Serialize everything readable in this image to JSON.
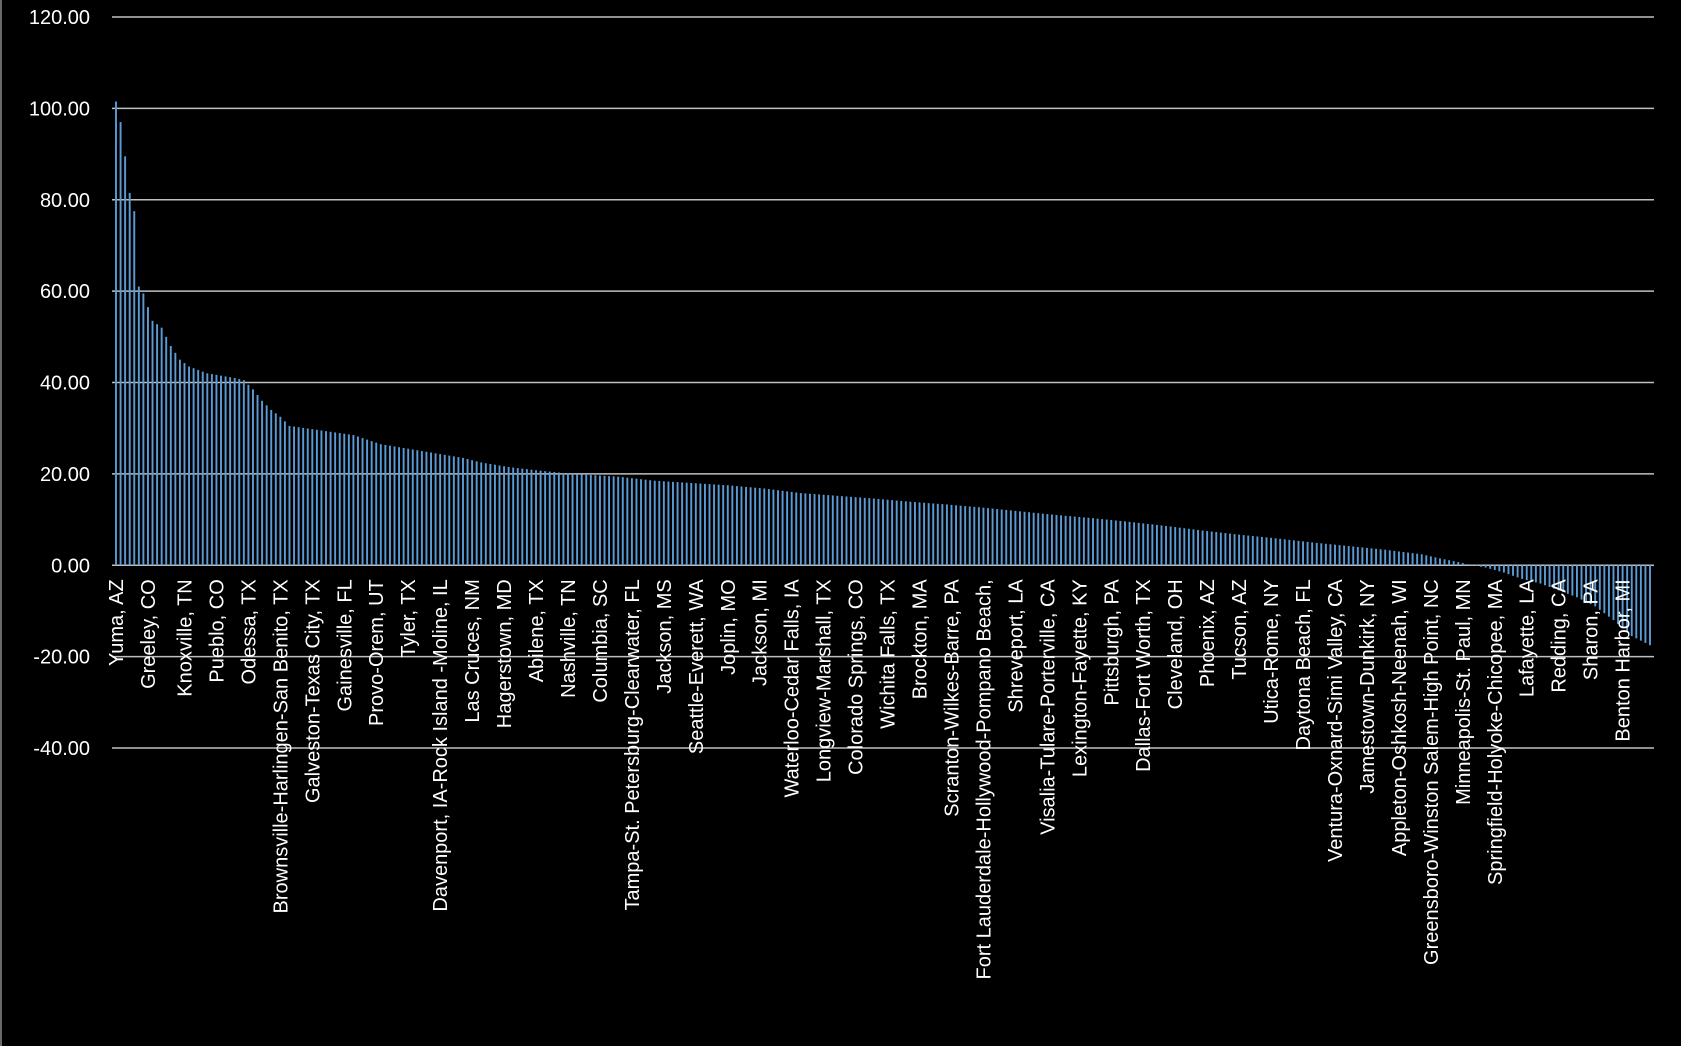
{
  "chart_data": {
    "type": "bar",
    "title": "",
    "xlabel": "",
    "ylabel": "",
    "ylim": [
      -40,
      120
    ],
    "yticks": [
      120,
      100,
      80,
      60,
      40,
      20,
      0,
      -20,
      -40
    ],
    "ytick_labels": [
      "120.00",
      "100.00",
      "80.00",
      "60.00",
      "40.00",
      "20.00",
      "0.00",
      "-20.00",
      "-40.00"
    ],
    "grid": true,
    "legend": "none",
    "bar_color": "#5b9bd5",
    "background": "#000000",
    "bar_count": 337,
    "labeled_categories": [
      {
        "index": 0,
        "label": "Yuma, AZ"
      },
      {
        "index": 7,
        "label": "Greeley, CO"
      },
      {
        "index": 15,
        "label": "Knoxville, TN"
      },
      {
        "index": 22,
        "label": "Pueblo, CO"
      },
      {
        "index": 29,
        "label": "Odessa, TX"
      },
      {
        "index": 36,
        "label": "Brownsville-Harlingen-San Benito, TX"
      },
      {
        "index": 43,
        "label": "Galveston-Texas City, TX"
      },
      {
        "index": 50,
        "label": "Gainesville, FL"
      },
      {
        "index": 57,
        "label": "Provo-Orem, UT"
      },
      {
        "index": 64,
        "label": "Tyler, TX"
      },
      {
        "index": 71,
        "label": "Davenport, IA-Rock Island -Moline, IL"
      },
      {
        "index": 78,
        "label": "Las Cruces, NM"
      },
      {
        "index": 85,
        "label": "Hagerstown, MD"
      },
      {
        "index": 92,
        "label": "Abilene, TX"
      },
      {
        "index": 99,
        "label": "Nashville, TN"
      },
      {
        "index": 106,
        "label": "Columbia, SC"
      },
      {
        "index": 113,
        "label": "Tampa-St. Petersburg-Clearwater, FL"
      },
      {
        "index": 120,
        "label": "Jackson, MS"
      },
      {
        "index": 127,
        "label": "Seattle-Everett, WA"
      },
      {
        "index": 134,
        "label": "Joplin, MO"
      },
      {
        "index": 141,
        "label": "Jackson, MI"
      },
      {
        "index": 148,
        "label": "Waterloo-Cedar Falls, IA"
      },
      {
        "index": 155,
        "label": "Longview-Marshall, TX"
      },
      {
        "index": 162,
        "label": "Colorado Springs, CO"
      },
      {
        "index": 169,
        "label": "Wichita Falls, TX"
      },
      {
        "index": 176,
        "label": "Brockton, MA"
      },
      {
        "index": 183,
        "label": "Scranton-Wilkes-Barre, PA"
      },
      {
        "index": 190,
        "label": "Fort Lauderdale-Hollywood-Pompano Beach,"
      },
      {
        "index": 197,
        "label": "Shreveport, LA"
      },
      {
        "index": 204,
        "label": "Visalia-Tulare-Porterville, CA"
      },
      {
        "index": 211,
        "label": "Lexington-Fayette, KY"
      },
      {
        "index": 218,
        "label": "Pittsburgh, PA"
      },
      {
        "index": 225,
        "label": "Dallas-Fort Worth, TX"
      },
      {
        "index": 232,
        "label": "Cleveland, OH"
      },
      {
        "index": 239,
        "label": "Phoenix, AZ"
      },
      {
        "index": 246,
        "label": "Tucson, AZ"
      },
      {
        "index": 253,
        "label": "Utica-Rome, NY"
      },
      {
        "index": 260,
        "label": "Daytona Beach, FL"
      },
      {
        "index": 267,
        "label": "Ventura-Oxnard-Simi Valley, CA"
      },
      {
        "index": 274,
        "label": "Jamestown-Dunkirk, NY"
      },
      {
        "index": 281,
        "label": "Appleton-Oshkosh-Neenah, WI"
      },
      {
        "index": 288,
        "label": "Greensboro-Winston Salem-High Point, NC"
      },
      {
        "index": 295,
        "label": "Minneapolis-St. Paul, MN"
      },
      {
        "index": 302,
        "label": "Springfield-Holyoke-Chicopee, MA"
      },
      {
        "index": 309,
        "label": "Lafayette, LA"
      },
      {
        "index": 316,
        "label": "Redding, CA"
      },
      {
        "index": 323,
        "label": "Sharon, PA"
      },
      {
        "index": 330,
        "label": "Benton Harbor, MI"
      }
    ],
    "value_anchors": [
      [
        0,
        101.5
      ],
      [
        1,
        97
      ],
      [
        2,
        89.5
      ],
      [
        3,
        81.5
      ],
      [
        4,
        77.5
      ],
      [
        5,
        61
      ],
      [
        6,
        59.5
      ],
      [
        8,
        53.5
      ],
      [
        10,
        52
      ],
      [
        12,
        48
      ],
      [
        14,
        45
      ],
      [
        16,
        43.5
      ],
      [
        20,
        42
      ],
      [
        26,
        41
      ],
      [
        28,
        40.5
      ],
      [
        30,
        38.5
      ],
      [
        32,
        36
      ],
      [
        34,
        34
      ],
      [
        36,
        32.5
      ],
      [
        38,
        30.5
      ],
      [
        45,
        29.5
      ],
      [
        52,
        28.5
      ],
      [
        58,
        26.5
      ],
      [
        64,
        25.5
      ],
      [
        70,
        24.5
      ],
      [
        76,
        23.5
      ],
      [
        80,
        22.5
      ],
      [
        86,
        21.5
      ],
      [
        92,
        20.8
      ],
      [
        100,
        20
      ],
      [
        110,
        19.4
      ],
      [
        118,
        18.5
      ],
      [
        126,
        18
      ],
      [
        134,
        17.5
      ],
      [
        142,
        16.8
      ],
      [
        150,
        15.8
      ],
      [
        158,
        15.2
      ],
      [
        166,
        14.6
      ],
      [
        174,
        13.9
      ],
      [
        182,
        13.3
      ],
      [
        190,
        12.6
      ],
      [
        198,
        11.8
      ],
      [
        206,
        11
      ],
      [
        214,
        10.3
      ],
      [
        222,
        9.5
      ],
      [
        230,
        8.6
      ],
      [
        238,
        7.6
      ],
      [
        246,
        6.7
      ],
      [
        254,
        5.9
      ],
      [
        262,
        5
      ],
      [
        270,
        4.2
      ],
      [
        278,
        3.4
      ],
      [
        286,
        2.4
      ],
      [
        290,
        1.5
      ],
      [
        294,
        0.7
      ],
      [
        297,
        0
      ],
      [
        300,
        -0.5
      ],
      [
        304,
        -1.6
      ],
      [
        308,
        -3
      ],
      [
        312,
        -4
      ],
      [
        316,
        -5.5
      ],
      [
        320,
        -7
      ],
      [
        324,
        -9
      ],
      [
        328,
        -12
      ],
      [
        332,
        -15.5
      ],
      [
        336,
        -17.5
      ]
    ]
  }
}
